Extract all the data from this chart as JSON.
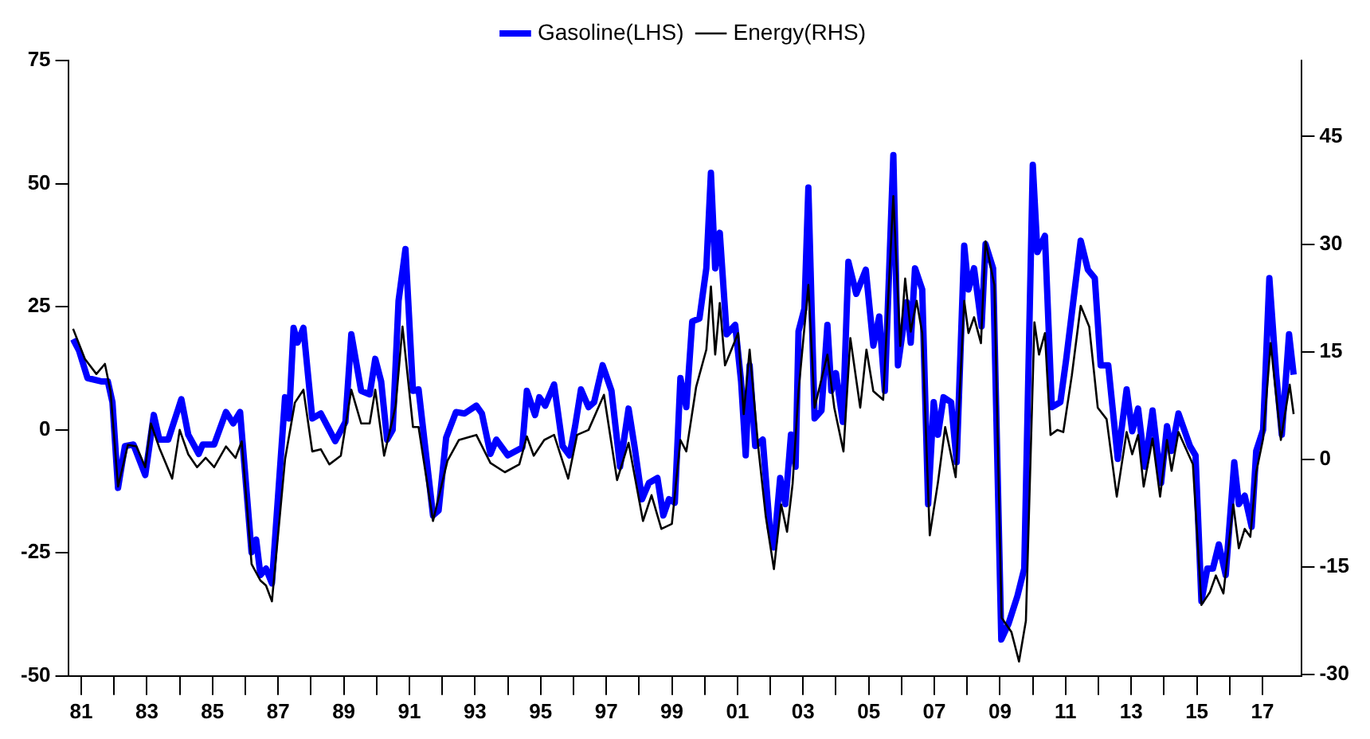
{
  "chart_data": {
    "type": "line",
    "legend": "top",
    "marker": "none",
    "series": [
      {
        "name": "Gasoline(LHS)",
        "color": "#0000ff",
        "x": [
          1980.75,
          1980.93,
          1981.19,
          1981.63,
          1981.81,
          1981.95,
          1982.12,
          1982.33,
          1982.59,
          1982.95,
          1983.21,
          1983.38,
          1983.65,
          1984.05,
          1984.26,
          1984.58,
          1984.7,
          1985.05,
          1985.41,
          1985.63,
          1985.84,
          1986.19,
          1986.33,
          1986.46,
          1986.63,
          1986.81,
          1987.21,
          1987.33,
          1987.47,
          1987.59,
          1987.77,
          1988.04,
          1988.3,
          1988.74,
          1989.05,
          1989.23,
          1989.53,
          1989.79,
          1989.96,
          1990.14,
          1990.32,
          1990.49,
          1990.67,
          1990.88,
          1991.11,
          1991.28,
          1991.72,
          1991.89,
          1992.12,
          1992.42,
          1992.68,
          1993.04,
          1993.21,
          1993.47,
          1993.65,
          1994.0,
          1994.44,
          1994.58,
          1994.83,
          1994.96,
          1995.14,
          1995.41,
          1995.67,
          1995.88,
          1996.05,
          1996.23,
          1996.46,
          1996.63,
          1996.89,
          1997.16,
          1997.42,
          1997.68,
          1997.86,
          1998.09,
          1998.3,
          1998.56,
          1998.74,
          1998.91,
          1999.09,
          1999.26,
          1999.44,
          1999.62,
          1999.84,
          2000.05,
          2000.19,
          2000.32,
          2000.46,
          2000.67,
          2000.93,
          2001.11,
          2001.25,
          2001.37,
          2001.54,
          2001.77,
          2001.98,
          2002.11,
          2002.3,
          2002.46,
          2002.63,
          2002.77,
          2002.86,
          2003.04,
          2003.16,
          2003.35,
          2003.56,
          2003.74,
          2003.86,
          2004.0,
          2004.21,
          2004.38,
          2004.62,
          2004.91,
          2005.14,
          2005.32,
          2005.49,
          2005.75,
          2005.89,
          2006.16,
          2006.28,
          2006.41,
          2006.63,
          2006.81,
          2006.98,
          2007.11,
          2007.28,
          2007.51,
          2007.68,
          2007.91,
          2008.04,
          2008.21,
          2008.44,
          2008.56,
          2008.79,
          2009.04,
          2009.26,
          2009.53,
          2009.74,
          2010.0,
          2010.14,
          2010.37,
          2010.58,
          2010.84,
          2011.02,
          2011.46,
          2011.68,
          2011.89,
          2012.07,
          2012.3,
          2012.59,
          2012.86,
          2013.03,
          2013.21,
          2013.42,
          2013.65,
          2013.91,
          2014.09,
          2014.23,
          2014.44,
          2014.79,
          2014.96,
          2015.14,
          2015.32,
          2015.49,
          2015.67,
          2015.88,
          2016.14,
          2016.28,
          2016.46,
          2016.67,
          2016.81,
          2017.02,
          2017.21,
          2017.42,
          2017.59,
          2017.81,
          2017.95
        ],
        "values": [
          18.4,
          16.1,
          10.5,
          9.8,
          9.8,
          5.6,
          -11.8,
          -3.3,
          -3.0,
          -9.2,
          3.0,
          -2.0,
          -2.0,
          6.2,
          -1.0,
          -4.9,
          -3.0,
          -3.0,
          3.6,
          1.3,
          3.6,
          -24.9,
          -22.3,
          -29.5,
          -28.2,
          -31.2,
          6.6,
          2.3,
          20.7,
          17.7,
          20.7,
          2.3,
          3.3,
          -2.3,
          1.6,
          19.4,
          7.9,
          7.2,
          14.4,
          9.8,
          -2.0,
          0,
          26.2,
          36.7,
          7.9,
          8.2,
          -17.4,
          -16.4,
          -1.6,
          3.6,
          3.3,
          4.9,
          3.3,
          -4.9,
          -2.0,
          -5.2,
          -3.6,
          7.9,
          3.0,
          6.6,
          4.9,
          9.2,
          -3.3,
          -5.2,
          0.7,
          8.2,
          4.6,
          5.6,
          13.1,
          7.9,
          -7.5,
          4.3,
          -3.3,
          -14.1,
          -10.8,
          -9.8,
          -17.4,
          -14.1,
          -14.8,
          10.5,
          4.6,
          22.0,
          22.6,
          32.8,
          52.2,
          32.8,
          40.0,
          19.4,
          21.3,
          9.8,
          -5.2,
          13.1,
          -3.3,
          -2.0,
          -19.7,
          -23.9,
          -9.8,
          -15.1,
          -1.0,
          -7.5,
          20.0,
          24.6,
          49.2,
          2.3,
          3.9,
          21.3,
          7.9,
          11.5,
          1.6,
          34.1,
          27.6,
          32.5,
          17.1,
          23.0,
          7.9,
          55.8,
          13.1,
          25.9,
          17.7,
          32.8,
          28.5,
          -15.1,
          5.6,
          -1.0,
          6.6,
          5.6,
          -6.6,
          37.4,
          28.5,
          32.8,
          21.0,
          37.7,
          32.8,
          -42.6,
          -39.4,
          -33.8,
          -28.2,
          53.8,
          36.1,
          39.4,
          4.6,
          5.6,
          14.4,
          38.4,
          32.5,
          30.8,
          13.1,
          13.1,
          -5.9,
          8.2,
          -0.3,
          4.3,
          -7.5,
          3.9,
          -10.8,
          0.7,
          -4.3,
          3.3,
          -3.3,
          -5.2,
          -34.8,
          -28.2,
          -28.2,
          -23.3,
          -29.5,
          -6.6,
          -15.1,
          -13.4,
          -19.7,
          -4.3,
          0,
          30.8,
          11.2,
          -1.0,
          19.4,
          11.2
        ]
      },
      {
        "name": "Energy(RHS)",
        "color": "#000000",
        "axis": "y2",
        "x": [
          1980.75,
          1981.11,
          1981.46,
          1981.72,
          1981.89,
          1982.12,
          1982.42,
          1982.68,
          1982.95,
          1983.12,
          1983.38,
          1983.77,
          1984.0,
          1984.26,
          1984.53,
          1984.79,
          1985.05,
          1985.41,
          1985.7,
          1985.89,
          1986.19,
          1986.46,
          1986.63,
          1986.81,
          1987.21,
          1987.51,
          1987.77,
          1988.04,
          1988.3,
          1988.56,
          1988.91,
          1989.23,
          1989.53,
          1989.79,
          1989.96,
          1990.23,
          1990.58,
          1990.79,
          1991.11,
          1991.28,
          1991.72,
          1992.16,
          1992.51,
          1993.04,
          1993.47,
          1993.91,
          1994.35,
          1994.58,
          1994.79,
          1995.11,
          1995.41,
          1995.84,
          1996.11,
          1996.46,
          1996.93,
          1997.33,
          1997.68,
          1998.12,
          1998.38,
          1998.68,
          1999.0,
          1999.26,
          1999.44,
          1999.74,
          2000.05,
          2000.19,
          2000.32,
          2000.46,
          2000.62,
          2001.02,
          2001.19,
          2001.37,
          2001.63,
          2001.86,
          2002.11,
          2002.33,
          2002.51,
          2002.68,
          2002.86,
          2003.16,
          2003.35,
          2003.74,
          2003.95,
          2004.23,
          2004.44,
          2004.74,
          2004.93,
          2005.14,
          2005.44,
          2005.75,
          2005.96,
          2006.11,
          2006.28,
          2006.46,
          2006.63,
          2006.86,
          2007.11,
          2007.33,
          2007.65,
          2007.91,
          2008.04,
          2008.21,
          2008.42,
          2008.56,
          2008.83,
          2009.05,
          2009.35,
          2009.58,
          2009.79,
          2010.05,
          2010.19,
          2010.37,
          2010.54,
          2010.75,
          2010.93,
          2011.19,
          2011.46,
          2011.72,
          2011.98,
          2012.25,
          2012.56,
          2012.86,
          2013.03,
          2013.21,
          2013.38,
          2013.65,
          2013.88,
          2014.09,
          2014.23,
          2014.44,
          2014.88,
          2015.14,
          2015.4,
          2015.58,
          2015.81,
          2016.11,
          2016.28,
          2016.46,
          2016.63,
          2016.81,
          2017.02,
          2017.25,
          2017.56,
          2017.83,
          2017.95
        ],
        "values": [
          18.2,
          14.0,
          11.9,
          13.3,
          9.5,
          -3.8,
          2.0,
          1.8,
          -1.1,
          5.0,
          1.6,
          -2.7,
          4.1,
          0.7,
          -1.1,
          0.2,
          -1.1,
          1.8,
          0.2,
          2.5,
          -14.6,
          -16.9,
          -17.6,
          -19.8,
          0,
          7.9,
          9.7,
          1.1,
          1.4,
          -0.7,
          0.5,
          9.7,
          5.0,
          5.0,
          9.7,
          0.5,
          7.4,
          18.5,
          4.5,
          4.5,
          -8.6,
          -0.2,
          2.7,
          3.4,
          -0.5,
          -1.8,
          -0.7,
          3.2,
          0.5,
          2.7,
          3.4,
          -2.7,
          3.4,
          4.1,
          9.0,
          -2.9,
          2.3,
          -8.6,
          -5.0,
          -9.7,
          -9.0,
          2.7,
          1.1,
          10.1,
          15.3,
          24.1,
          14.6,
          21.8,
          13.1,
          17.6,
          6.3,
          15.3,
          1.8,
          -7.9,
          -15.3,
          -6.3,
          -10.1,
          -3.4,
          9.5,
          24.3,
          7.2,
          14.6,
          7.2,
          1.1,
          16.9,
          7.2,
          15.3,
          9.5,
          8.3,
          36.7,
          15.8,
          25.2,
          17.8,
          22.1,
          17.6,
          -10.6,
          -3.2,
          4.5,
          -2.5,
          22.1,
          17.6,
          19.8,
          16.2,
          30.4,
          24.3,
          -22.1,
          -24.1,
          -28.2,
          -22.5,
          19.1,
          14.6,
          17.6,
          3.4,
          4.1,
          3.8,
          11.7,
          21.4,
          18.5,
          7.2,
          5.6,
          -5.2,
          3.8,
          0.7,
          3.4,
          -3.8,
          2.9,
          -5.2,
          2.7,
          -1.6,
          3.8,
          -0.7,
          -20.3,
          -18.5,
          -16.2,
          -18.7,
          -6.3,
          -12.4,
          -9.7,
          -10.8,
          -1.8,
          2.9,
          16.2,
          2.7,
          10.4,
          6.3
        ]
      }
    ],
    "xlim": [
      1980.6,
      2018.2
    ],
    "xticks": [
      {
        "value": 1981,
        "label": "81"
      },
      {
        "value": 1982,
        "label": null
      },
      {
        "value": 1983,
        "label": "83"
      },
      {
        "value": 1984,
        "label": null
      },
      {
        "value": 1985,
        "label": "85"
      },
      {
        "value": 1986,
        "label": null
      },
      {
        "value": 1987,
        "label": "87"
      },
      {
        "value": 1988,
        "label": null
      },
      {
        "value": 1989,
        "label": "89"
      },
      {
        "value": 1990,
        "label": null
      },
      {
        "value": 1991,
        "label": "91"
      },
      {
        "value": 1992,
        "label": null
      },
      {
        "value": 1993,
        "label": "93"
      },
      {
        "value": 1994,
        "label": null
      },
      {
        "value": 1995,
        "label": "95"
      },
      {
        "value": 1996,
        "label": null
      },
      {
        "value": 1997,
        "label": "97"
      },
      {
        "value": 1998,
        "label": null
      },
      {
        "value": 1999,
        "label": "99"
      },
      {
        "value": 2000,
        "label": null
      },
      {
        "value": 2001,
        "label": "01"
      },
      {
        "value": 2002,
        "label": null
      },
      {
        "value": 2003,
        "label": "03"
      },
      {
        "value": 2004,
        "label": null
      },
      {
        "value": 2005,
        "label": "05"
      },
      {
        "value": 2006,
        "label": null
      },
      {
        "value": 2007,
        "label": "07"
      },
      {
        "value": 2008,
        "label": null
      },
      {
        "value": 2009,
        "label": "09"
      },
      {
        "value": 2010,
        "label": null
      },
      {
        "value": 2011,
        "label": "11"
      },
      {
        "value": 2012,
        "label": null
      },
      {
        "value": 2013,
        "label": "13"
      },
      {
        "value": 2014,
        "label": null
      },
      {
        "value": 2015,
        "label": "15"
      },
      {
        "value": 2016,
        "label": null
      },
      {
        "value": 2017,
        "label": "17"
      }
    ],
    "ylim": [
      -50,
      75
    ],
    "yticks": [
      -50,
      -25,
      0,
      25,
      50,
      75
    ],
    "y2lim": [
      -30.2,
      55.6
    ],
    "y2ticks": [
      -30,
      -15,
      0,
      15,
      30,
      45
    ]
  }
}
